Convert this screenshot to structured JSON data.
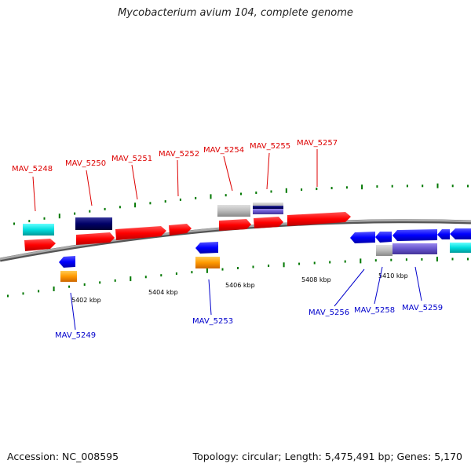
{
  "title": "Mycobacterium avium 104, complete genome",
  "footer": {
    "accession": "Accession: NC_008595",
    "stats": "Topology: circular; Length: 5,475,491 bp; Genes: 5,170"
  },
  "colors": {
    "forward_label": "#dd0000",
    "reverse_label": "#0000cc",
    "backbone": "#888888",
    "tick": "#007700",
    "red_gene": "#ff0000",
    "blue_gene": "#0000ff",
    "cyan_gene": "#00dddd",
    "navy_gene": "#000066",
    "grey_gene": "#bbbbbb",
    "purple_gene": "#6655cc",
    "orange_gene": "#ff9900"
  },
  "scale_labels": [
    "5402 kbp",
    "5404 kbp",
    "5406 kbp",
    "5408 kbp",
    "5410 kbp"
  ],
  "forward_genes": [
    "MAV_5248",
    "MAV_5250",
    "MAV_5251",
    "MAV_5252",
    "MAV_5254",
    "MAV_5255",
    "MAV_5257"
  ],
  "reverse_genes": [
    "MAV_5249",
    "MAV_5253",
    "MAV_5256",
    "MAV_5258",
    "MAV_5259"
  ]
}
